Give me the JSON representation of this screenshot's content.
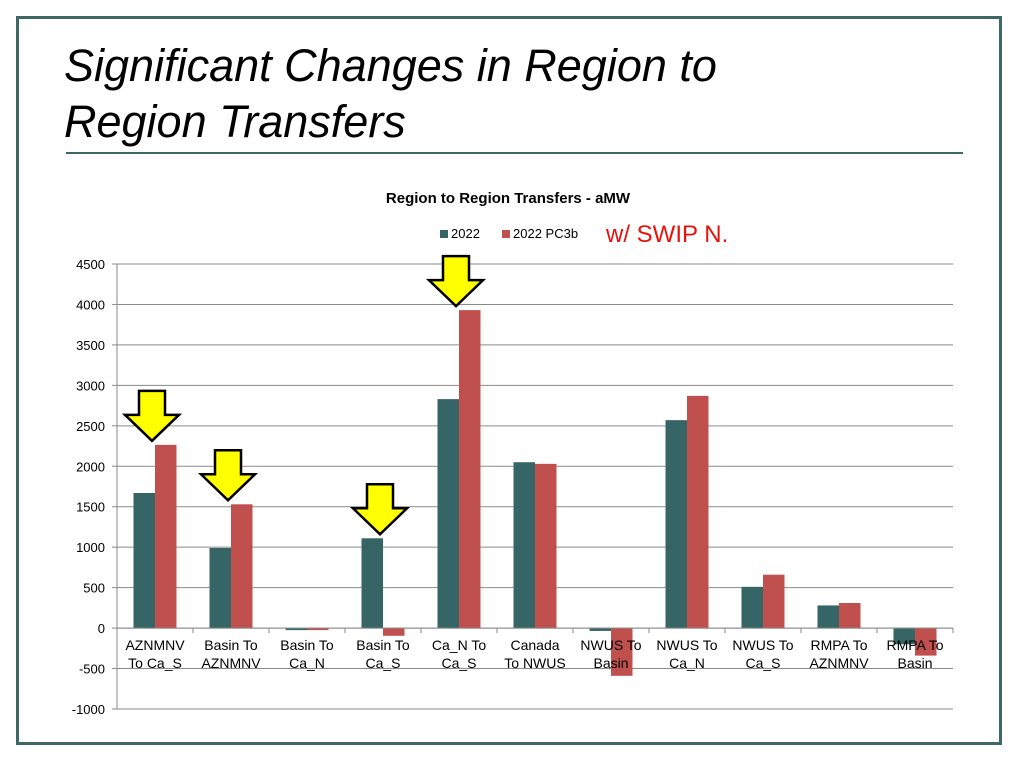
{
  "slide": {
    "title_line1": "Significant Changes in Region to",
    "title_line2": "Region Transfers",
    "annotation": "w/ SWIP N."
  },
  "colors": {
    "frame": "#3e6866",
    "series_2022": "#356565",
    "series_pc3b": "#c0504d",
    "arrow_fill": "#ffff00",
    "annotation": "#e8120c"
  },
  "chart_data": {
    "type": "bar",
    "title": "Region to Region Transfers - aMW",
    "ylim": [
      -1000,
      4500
    ],
    "yticks": [
      -1000,
      -500,
      0,
      500,
      1000,
      1500,
      2000,
      2500,
      3000,
      3500,
      4000,
      4500
    ],
    "grid": true,
    "legend": "top-center",
    "categories": [
      [
        "AZNMNV",
        "To Ca_S"
      ],
      [
        "Basin To",
        "AZNMNV"
      ],
      [
        "Basin To",
        "Ca_N"
      ],
      [
        "Basin To",
        "Ca_S"
      ],
      [
        "Ca_N To",
        "Ca_S"
      ],
      [
        "Canada",
        "To NWUS"
      ],
      [
        "NWUS To",
        "Basin"
      ],
      [
        "NWUS To",
        "Ca_N"
      ],
      [
        "NWUS To",
        "Ca_S"
      ],
      [
        "RMPA To",
        "AZNMNV"
      ],
      [
        "RMPA To",
        "Basin"
      ]
    ],
    "series": [
      {
        "name": "2022",
        "values": [
          1670,
          990,
          -25,
          1110,
          2830,
          2050,
          -35,
          2570,
          510,
          280,
          -200
        ]
      },
      {
        "name": "2022 PC3b",
        "values": [
          2265,
          1530,
          -25,
          -95,
          3930,
          2030,
          -590,
          2870,
          660,
          310,
          -340
        ]
      }
    ],
    "highlighted_categories": [
      0,
      1,
      3,
      4
    ]
  }
}
